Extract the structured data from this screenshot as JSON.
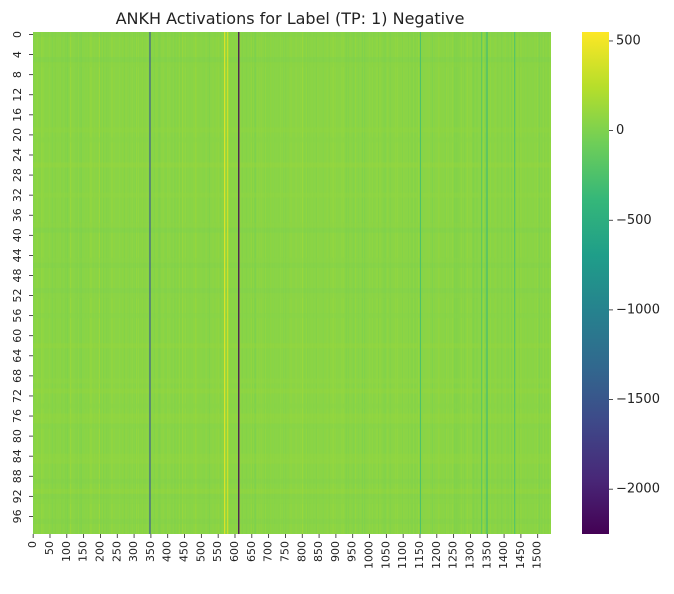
{
  "chart_data": {
    "type": "heatmap",
    "title": "ANKH Activations for Label (TP: 1) Negative",
    "xlabel": "",
    "ylabel": "",
    "rows": 100,
    "columns": 1540,
    "x_ticks": [
      0,
      50,
      100,
      150,
      200,
      250,
      300,
      350,
      400,
      450,
      500,
      550,
      600,
      650,
      700,
      750,
      800,
      850,
      900,
      950,
      1000,
      1050,
      1100,
      1150,
      1200,
      1250,
      1300,
      1350,
      1400,
      1450,
      1500
    ],
    "y_ticks": [
      0,
      4,
      8,
      12,
      16,
      20,
      24,
      28,
      32,
      36,
      40,
      44,
      48,
      52,
      56,
      60,
      64,
      68,
      72,
      76,
      80,
      84,
      88,
      92,
      96
    ],
    "colorscale": "viridis",
    "color_range": [
      -2250,
      550
    ],
    "colorbar_ticks": [
      500,
      0,
      -500,
      -1000,
      -1500,
      -2000
    ],
    "colorbar_tick_labels": [
      "500",
      "0",
      "−500",
      "−1000",
      "−1500",
      "−2000"
    ],
    "baseline_value": 50,
    "column_features": [
      {
        "column": 346,
        "value": -1450
      },
      {
        "column": 568,
        "value": 420
      },
      {
        "column": 577,
        "value": 360
      },
      {
        "column": 610,
        "value": -2250
      },
      {
        "column": 1150,
        "value": -250
      },
      {
        "column": 1332,
        "value": -150
      },
      {
        "column": 1348,
        "value": -300
      },
      {
        "column": 1430,
        "value": -200
      }
    ]
  }
}
